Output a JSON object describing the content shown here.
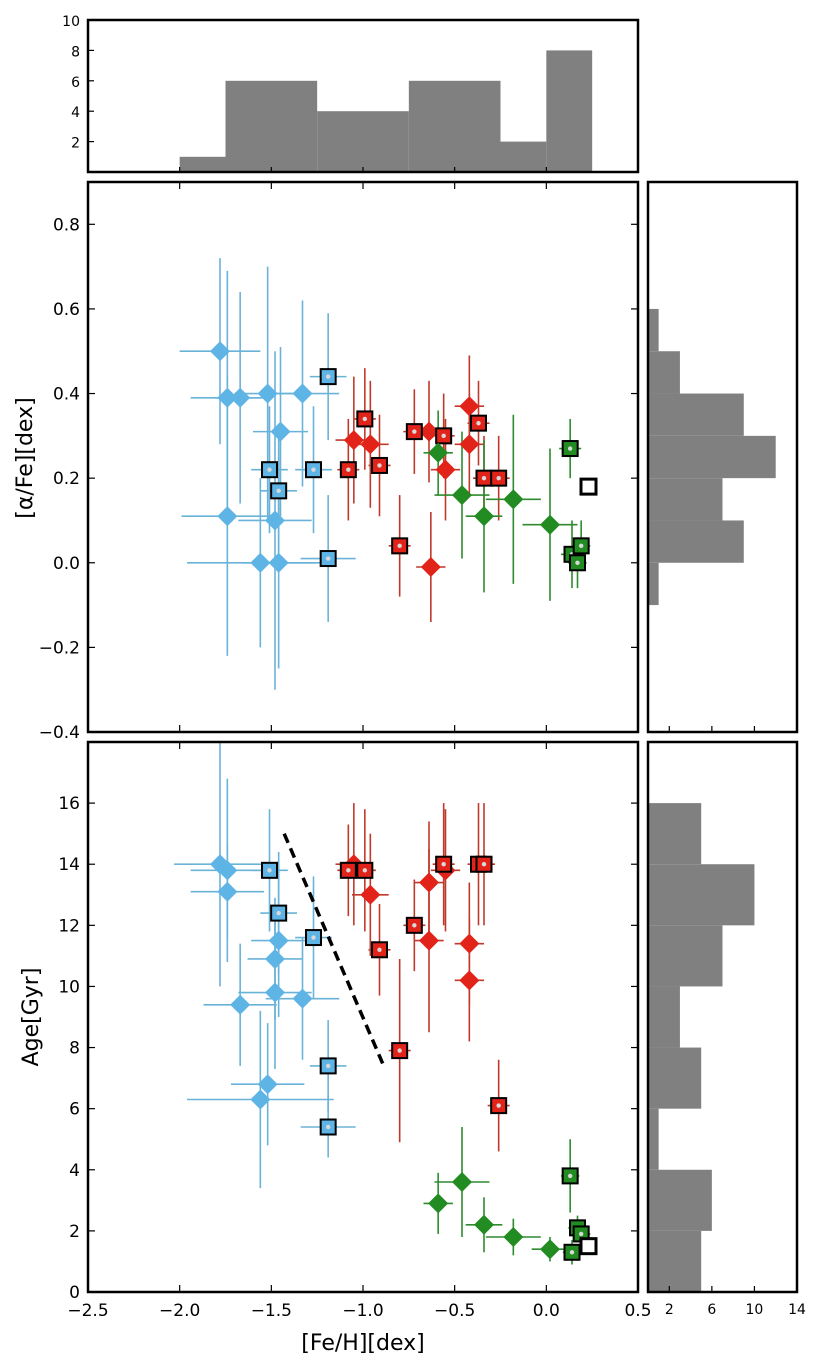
{
  "colors": {
    "blue": "#5fb4e6",
    "blue_err": "#6ab3d8",
    "red": "#e2231a",
    "red_err": "#c0392b",
    "green": "#228b22",
    "green_err": "#2e8b2e",
    "hist": "#808080"
  },
  "chart_data": [
    {
      "id": "top_hist",
      "type": "bar",
      "title": "",
      "bins": [
        -2.0,
        -1.75,
        -1.25,
        -0.75,
        -0.25,
        0.0,
        0.25
      ],
      "counts": [
        1,
        6,
        4,
        6,
        2,
        8
      ],
      "xlim": [
        -2.5,
        0.5
      ],
      "ylim": [
        0,
        10
      ],
      "yticks": [
        2,
        4,
        6,
        8,
        10
      ],
      "ytick_labels": [
        "2",
        "4",
        "6",
        "8",
        "10"
      ]
    },
    {
      "id": "alpha_fe_scatter",
      "type": "scatter",
      "xlabel": "",
      "ylabel": "[α/Fe][dex]",
      "xlim": [
        -2.5,
        0.5
      ],
      "ylim": [
        -0.4,
        0.9
      ],
      "yticks": [
        -0.4,
        -0.2,
        0.0,
        0.2,
        0.4,
        0.6,
        0.8
      ],
      "ytick_labels": [
        "−0.4",
        "−0.2",
        "0.0",
        "0.2",
        "0.4",
        "0.6",
        "0.8"
      ],
      "series": [
        {
          "name": "blue-diamonds",
          "color": "blue",
          "marker": "diamond",
          "points": [
            {
              "x": -1.78,
              "y": 0.5,
              "xerr": 0.22,
              "yerr": 0.22
            },
            {
              "x": -1.74,
              "y": 0.39,
              "xerr": 0.2,
              "yerr": 0.3
            },
            {
              "x": -1.67,
              "y": 0.39,
              "xerr": 0.15,
              "yerr": 0.25
            },
            {
              "x": -1.52,
              "y": 0.4,
              "xerr": 0.18,
              "yerr": 0.3
            },
            {
              "x": -1.33,
              "y": 0.4,
              "xerr": 0.2,
              "yerr": 0.22
            },
            {
              "x": -1.45,
              "y": 0.31,
              "xerr": 0.15,
              "yerr": 0.2
            },
            {
              "x": -1.74,
              "y": 0.11,
              "xerr": 0.25,
              "yerr": 0.33
            },
            {
              "x": -1.48,
              "y": 0.1,
              "xerr": 0.2,
              "yerr": 0.4
            },
            {
              "x": -1.56,
              "y": 0.0,
              "xerr": 0.4,
              "yerr": 0.2
            },
            {
              "x": -1.46,
              "y": 0.0,
              "xerr": 0.2,
              "yerr": 0.25
            }
          ]
        },
        {
          "name": "blue-squares",
          "color": "blue",
          "marker": "square",
          "points": [
            {
              "x": -1.19,
              "y": 0.44,
              "xerr": 0.1,
              "yerr": 0.15
            },
            {
              "x": -1.51,
              "y": 0.22,
              "xerr": 0.1,
              "yerr": 0.15
            },
            {
              "x": -1.46,
              "y": 0.17,
              "xerr": 0.1,
              "yerr": 0.15
            },
            {
              "x": -1.27,
              "y": 0.22,
              "xerr": 0.1,
              "yerr": 0.15
            },
            {
              "x": -1.19,
              "y": 0.01,
              "xerr": 0.15,
              "yerr": 0.15
            }
          ]
        },
        {
          "name": "red-diamonds",
          "color": "red",
          "marker": "diamond",
          "points": [
            {
              "x": -1.05,
              "y": 0.29,
              "xerr": 0.1,
              "yerr": 0.15
            },
            {
              "x": -0.96,
              "y": 0.28,
              "xerr": 0.1,
              "yerr": 0.15
            },
            {
              "x": -0.64,
              "y": 0.31,
              "xerr": 0.1,
              "yerr": 0.12
            },
            {
              "x": -0.42,
              "y": 0.37,
              "xerr": 0.08,
              "yerr": 0.12
            },
            {
              "x": -0.42,
              "y": 0.28,
              "xerr": 0.08,
              "yerr": 0.12
            },
            {
              "x": -0.55,
              "y": 0.22,
              "xerr": 0.08,
              "yerr": 0.12
            },
            {
              "x": -0.63,
              "y": -0.01,
              "xerr": 0.08,
              "yerr": 0.13
            }
          ]
        },
        {
          "name": "red-squares",
          "color": "red",
          "marker": "square",
          "points": [
            {
              "x": -0.99,
              "y": 0.34,
              "xerr": 0.06,
              "yerr": 0.12
            },
            {
              "x": -0.72,
              "y": 0.31,
              "xerr": 0.06,
              "yerr": 0.1
            },
            {
              "x": -0.56,
              "y": 0.3,
              "xerr": 0.06,
              "yerr": 0.1
            },
            {
              "x": -0.37,
              "y": 0.33,
              "xerr": 0.06,
              "yerr": 0.1
            },
            {
              "x": -1.08,
              "y": 0.22,
              "xerr": 0.06,
              "yerr": 0.12
            },
            {
              "x": -0.91,
              "y": 0.23,
              "xerr": 0.06,
              "yerr": 0.12
            },
            {
              "x": -0.34,
              "y": 0.2,
              "xerr": 0.06,
              "yerr": 0.1
            },
            {
              "x": -0.26,
              "y": 0.2,
              "xerr": 0.06,
              "yerr": 0.1
            },
            {
              "x": -0.8,
              "y": 0.04,
              "xerr": 0.06,
              "yerr": 0.12
            }
          ]
        },
        {
          "name": "green-diamonds",
          "color": "green",
          "marker": "diamond",
          "points": [
            {
              "x": -0.59,
              "y": 0.26,
              "xerr": 0.08,
              "yerr": 0.1
            },
            {
              "x": -0.46,
              "y": 0.16,
              "xerr": 0.15,
              "yerr": 0.15
            },
            {
              "x": -0.34,
              "y": 0.11,
              "xerr": 0.1,
              "yerr": 0.18
            },
            {
              "x": -0.18,
              "y": 0.15,
              "xerr": 0.15,
              "yerr": 0.2
            },
            {
              "x": 0.02,
              "y": 0.09,
              "xerr": 0.15,
              "yerr": 0.18
            }
          ]
        },
        {
          "name": "green-squares",
          "color": "green",
          "marker": "square",
          "points": [
            {
              "x": 0.13,
              "y": 0.27,
              "xerr": 0.06,
              "yerr": 0.07
            },
            {
              "x": 0.14,
              "y": 0.02,
              "xerr": 0.06,
              "yerr": 0.08
            },
            {
              "x": 0.19,
              "y": 0.04,
              "xerr": 0.05,
              "yerr": 0.06
            },
            {
              "x": 0.17,
              "y": 0.0,
              "xerr": 0.05,
              "yerr": 0.06
            }
          ]
        },
        {
          "name": "open-square",
          "color": "green",
          "marker": "open-square",
          "points": [
            {
              "x": 0.23,
              "y": 0.18,
              "xerr": 0.0,
              "yerr": 0.0
            }
          ]
        }
      ]
    },
    {
      "id": "alpha_fe_hist",
      "type": "bar",
      "orientation": "horizontal",
      "bins": [
        -0.1,
        0.0,
        0.1,
        0.2,
        0.3,
        0.4,
        0.5,
        0.6
      ],
      "counts": [
        1,
        9,
        7,
        12,
        9,
        3,
        1
      ]
    },
    {
      "id": "age_scatter",
      "type": "scatter",
      "xlabel": "[Fe/H][dex]",
      "ylabel": "Age[Gyr]",
      "xlim": [
        -2.5,
        0.5
      ],
      "ylim": [
        0,
        18
      ],
      "xticks": [
        -2.5,
        -2.0,
        -1.5,
        -1.0,
        -0.5,
        0.0,
        0.5
      ],
      "xtick_labels": [
        "−2.5",
        "−2.0",
        "−1.5",
        "−1.0",
        "−0.5",
        "0.0",
        "0.5"
      ],
      "yticks": [
        0,
        2,
        4,
        6,
        8,
        10,
        12,
        14,
        16
      ],
      "ytick_labels": [
        "0",
        "2",
        "4",
        "6",
        "8",
        "10",
        "12",
        "14",
        "16"
      ],
      "dashed_line": {
        "x": [
          -1.43,
          -0.88
        ],
        "y": [
          15.0,
          7.3
        ]
      },
      "series": [
        {
          "name": "blue-diamonds",
          "color": "blue",
          "marker": "diamond",
          "points": [
            {
              "x": -1.78,
              "y": 14.0,
              "xerr": 0.25,
              "yerr": 4.0
            },
            {
              "x": -1.74,
              "y": 13.8,
              "xerr": 0.2,
              "yerr": 3.0
            },
            {
              "x": -1.74,
              "y": 13.1,
              "xerr": 0.2,
              "yerr": 1.5
            },
            {
              "x": -1.46,
              "y": 11.5,
              "xerr": 0.15,
              "yerr": 2.5
            },
            {
              "x": -1.48,
              "y": 10.9,
              "xerr": 0.15,
              "yerr": 2.0
            },
            {
              "x": -1.67,
              "y": 9.4,
              "xerr": 0.2,
              "yerr": 2.0
            },
            {
              "x": -1.48,
              "y": 9.8,
              "xerr": 0.2,
              "yerr": 2.5
            },
            {
              "x": -1.33,
              "y": 9.6,
              "xerr": 0.2,
              "yerr": 2.0
            },
            {
              "x": -1.52,
              "y": 6.8,
              "xerr": 0.2,
              "yerr": 2.0
            },
            {
              "x": -1.56,
              "y": 6.3,
              "xerr": 0.4,
              "yerr": 2.9
            }
          ]
        },
        {
          "name": "blue-squares",
          "color": "blue",
          "marker": "square",
          "points": [
            {
              "x": -1.51,
              "y": 13.8,
              "xerr": 0.1,
              "yerr": 2.0
            },
            {
              "x": -1.46,
              "y": 12.4,
              "xerr": 0.1,
              "yerr": 2.0
            },
            {
              "x": -1.27,
              "y": 11.6,
              "xerr": 0.1,
              "yerr": 2.0
            },
            {
              "x": -1.19,
              "y": 7.4,
              "xerr": 0.1,
              "yerr": 1.5
            },
            {
              "x": -1.19,
              "y": 5.4,
              "xerr": 0.15,
              "yerr": 1.0
            }
          ]
        },
        {
          "name": "red-diamonds",
          "color": "red",
          "marker": "diamond",
          "points": [
            {
              "x": -1.05,
              "y": 14.0,
              "xerr": 0.1,
              "yerr": 2.0
            },
            {
              "x": -0.96,
              "y": 13.0,
              "xerr": 0.1,
              "yerr": 2.0
            },
            {
              "x": -0.64,
              "y": 13.4,
              "xerr": 0.08,
              "yerr": 2.0
            },
            {
              "x": -0.55,
              "y": 13.8,
              "xerr": 0.08,
              "yerr": 2.0
            },
            {
              "x": -0.64,
              "y": 11.5,
              "xerr": 0.08,
              "yerr": 3.0
            },
            {
              "x": -0.42,
              "y": 11.4,
              "xerr": 0.08,
              "yerr": 2.0
            },
            {
              "x": -0.42,
              "y": 10.2,
              "xerr": 0.08,
              "yerr": 2.0
            }
          ]
        },
        {
          "name": "red-squares",
          "color": "red",
          "marker": "square",
          "points": [
            {
              "x": -1.08,
              "y": 13.8,
              "xerr": 0.06,
              "yerr": 1.5
            },
            {
              "x": -0.99,
              "y": 13.8,
              "xerr": 0.06,
              "yerr": 2.0
            },
            {
              "x": -0.56,
              "y": 14.0,
              "xerr": 0.06,
              "yerr": 2.0
            },
            {
              "x": -0.37,
              "y": 14.0,
              "xerr": 0.06,
              "yerr": 2.0
            },
            {
              "x": -0.34,
              "y": 14.0,
              "xerr": 0.06,
              "yerr": 2.0
            },
            {
              "x": -0.72,
              "y": 12.0,
              "xerr": 0.06,
              "yerr": 1.5
            },
            {
              "x": -0.91,
              "y": 11.2,
              "xerr": 0.06,
              "yerr": 1.5
            },
            {
              "x": -0.8,
              "y": 7.9,
              "xerr": 0.06,
              "yerr": 3.0
            },
            {
              "x": -0.26,
              "y": 6.1,
              "xerr": 0.06,
              "yerr": 1.5
            }
          ]
        },
        {
          "name": "green-diamonds",
          "color": "green",
          "marker": "diamond",
          "points": [
            {
              "x": -0.59,
              "y": 2.9,
              "xerr": 0.08,
              "yerr": 1.0
            },
            {
              "x": -0.46,
              "y": 3.6,
              "xerr": 0.15,
              "yerr": 1.8
            },
            {
              "x": -0.34,
              "y": 2.2,
              "xerr": 0.1,
              "yerr": 0.9
            },
            {
              "x": -0.18,
              "y": 1.8,
              "xerr": 0.15,
              "yerr": 0.6
            },
            {
              "x": 0.02,
              "y": 1.4,
              "xerr": 0.1,
              "yerr": 0.4
            }
          ]
        },
        {
          "name": "green-squares",
          "color": "green",
          "marker": "square",
          "points": [
            {
              "x": 0.13,
              "y": 3.8,
              "xerr": 0.05,
              "yerr": 1.2
            },
            {
              "x": 0.17,
              "y": 2.1,
              "xerr": 0.05,
              "yerr": 0.4
            },
            {
              "x": 0.19,
              "y": 1.9,
              "xerr": 0.05,
              "yerr": 0.4
            },
            {
              "x": 0.14,
              "y": 1.3,
              "xerr": 0.05,
              "yerr": 0.4
            }
          ]
        },
        {
          "name": "open-square",
          "color": "green",
          "marker": "open-square",
          "points": [
            {
              "x": 0.23,
              "y": 1.5,
              "xerr": 0.0,
              "yerr": 0.0
            }
          ]
        }
      ]
    },
    {
      "id": "age_hist",
      "type": "bar",
      "orientation": "horizontal",
      "bins": [
        0,
        2,
        4,
        6,
        8,
        10,
        12,
        14,
        16
      ],
      "counts": [
        5,
        6,
        1,
        5,
        3,
        7,
        10,
        5
      ],
      "xlim": [
        0,
        14
      ],
      "xticks": [
        2,
        6,
        10,
        14
      ],
      "xtick_labels": [
        "2",
        "6",
        "10",
        "14"
      ]
    }
  ]
}
